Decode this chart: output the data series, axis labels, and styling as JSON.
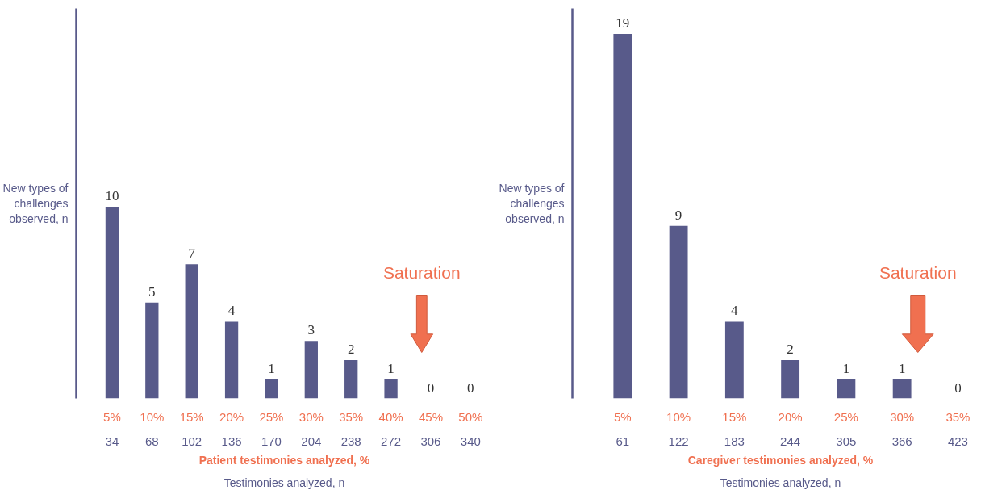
{
  "chart_data": [
    {
      "type": "bar",
      "ylabel": "New types of\nchallenges\nobserved, n",
      "x2label": "Patient testimonies analyzed, %",
      "xlabel": "Testimonies analyzed, n",
      "categories": [
        "5%",
        "10%",
        "15%",
        "20%",
        "25%",
        "30%",
        "35%",
        "40%",
        "45%",
        "50%"
      ],
      "values": [
        10,
        5,
        7,
        4,
        1,
        3,
        2,
        1,
        0,
        0
      ],
      "color": "#585a8a",
      "data_labels": true,
      "grid": false,
      "legend": false,
      "tick_labels": "x",
      "annotations": [
        "Saturation",
        "34",
        "68",
        "102",
        "136",
        "170",
        "204",
        "238",
        "272",
        "306",
        "340"
      ]
    },
    {
      "type": "bar",
      "ylabel": "New types of\nchallenges\nobserved, n",
      "x2label": "Caregiver testimonies analyzed, %",
      "xlabel": "Testimonies analyzed, n",
      "categories": [
        "5%",
        "10%",
        "15%",
        "20%",
        "25%",
        "30%",
        "35%"
      ],
      "values": [
        19,
        9,
        4,
        2,
        1,
        1,
        0
      ],
      "color": "#585a8a",
      "data_labels": true,
      "grid": false,
      "legend": false,
      "tick_labels": "x",
      "annotations": [
        "Saturation",
        "61",
        "122",
        "183",
        "244",
        "305",
        "366",
        "423"
      ]
    }
  ]
}
